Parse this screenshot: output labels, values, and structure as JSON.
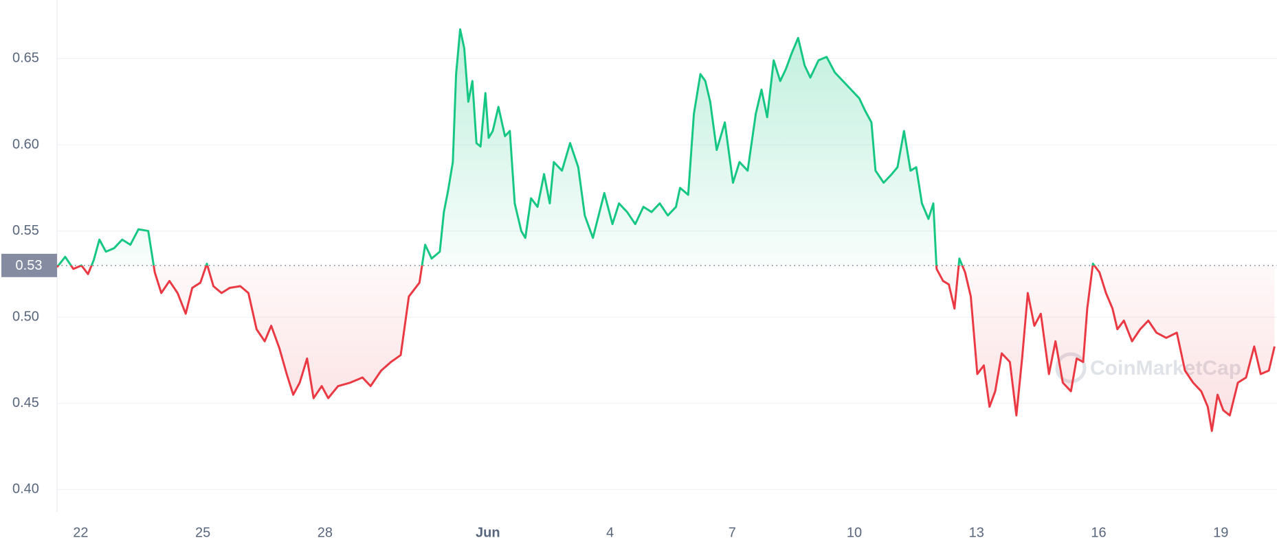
{
  "chart_data": {
    "type": "line",
    "baseline": 0.53,
    "watermark": "CoinMarketCap",
    "up_color": "#16c784",
    "down_color": "#ea3943",
    "grid": true,
    "xlim": [
      21.42,
      51.38
    ],
    "ylim": [
      0.387,
      0.684
    ],
    "xticks": [
      22,
      25,
      28,
      {
        "value": 32,
        "label": "Jun"
      },
      {
        "value": 35,
        "label": "4"
      },
      {
        "value": 38,
        "label": "7"
      },
      {
        "value": 41,
        "label": "10"
      },
      {
        "value": 44,
        "label": "13"
      },
      {
        "value": 47,
        "label": "16"
      },
      {
        "value": 50,
        "label": "19"
      }
    ],
    "yticks": [
      {
        "value": 0.4,
        "label": "0.40"
      },
      0.45,
      {
        "value": 0.5,
        "label": "0.50"
      },
      0.55,
      {
        "value": 0.6,
        "label": "0.60"
      },
      0.65
    ],
    "x": [
      21.42,
      21.62,
      21.82,
      22.02,
      22.18,
      22.32,
      22.46,
      22.62,
      22.82,
      23.02,
      23.22,
      23.42,
      23.66,
      23.82,
      23.98,
      24.18,
      24.38,
      24.58,
      24.74,
      24.94,
      25.1,
      25.26,
      25.46,
      25.66,
      25.92,
      26.12,
      26.32,
      26.52,
      26.68,
      26.88,
      27.06,
      27.22,
      27.38,
      27.56,
      27.72,
      27.92,
      28.08,
      28.32,
      28.62,
      28.92,
      29.12,
      29.38,
      29.62,
      29.86,
      30.06,
      30.32,
      30.46,
      30.62,
      30.82,
      30.92,
      31.02,
      31.14,
      31.22,
      31.32,
      31.42,
      31.52,
      31.62,
      31.72,
      31.82,
      31.94,
      32.02,
      32.12,
      32.26,
      32.42,
      32.54,
      32.66,
      32.82,
      32.92,
      33.06,
      33.22,
      33.38,
      33.52,
      33.62,
      33.82,
      34.02,
      34.22,
      34.38,
      34.58,
      34.72,
      34.86,
      35.06,
      35.22,
      35.42,
      35.62,
      35.82,
      36.02,
      36.22,
      36.42,
      36.62,
      36.72,
      36.92,
      37.06,
      37.22,
      37.34,
      37.46,
      37.62,
      37.82,
      38.02,
      38.18,
      38.38,
      38.58,
      38.72,
      38.86,
      39.02,
      39.18,
      39.32,
      39.46,
      39.62,
      39.78,
      39.92,
      40.12,
      40.32,
      40.52,
      40.72,
      40.92,
      41.12,
      41.26,
      41.42,
      41.52,
      41.72,
      41.92,
      42.06,
      42.22,
      42.38,
      42.52,
      42.66,
      42.82,
      42.94,
      43.02,
      43.18,
      43.32,
      43.46,
      43.58,
      43.72,
      43.86,
      44.02,
      44.18,
      44.32,
      44.46,
      44.62,
      44.82,
      44.98,
      45.12,
      45.26,
      45.42,
      45.58,
      45.78,
      45.94,
      46.12,
      46.32,
      46.46,
      46.62,
      46.72,
      46.86,
      47.02,
      47.18,
      47.34,
      47.46,
      47.62,
      47.82,
      48.02,
      48.22,
      48.42,
      48.66,
      48.92,
      49.12,
      49.32,
      49.52,
      49.68,
      49.78,
      49.92,
      50.06,
      50.22,
      50.42,
      50.62,
      50.82,
      50.98,
      51.18,
      51.32
    ],
    "values": [
      0.529,
      0.535,
      0.528,
      0.53,
      0.525,
      0.533,
      0.545,
      0.538,
      0.54,
      0.545,
      0.542,
      0.551,
      0.55,
      0.526,
      0.514,
      0.521,
      0.514,
      0.502,
      0.517,
      0.52,
      0.531,
      0.518,
      0.514,
      0.517,
      0.518,
      0.514,
      0.493,
      0.486,
      0.495,
      0.482,
      0.467,
      0.455,
      0.462,
      0.476,
      0.453,
      0.46,
      0.453,
      0.46,
      0.462,
      0.465,
      0.46,
      0.469,
      0.474,
      0.478,
      0.512,
      0.52,
      0.542,
      0.534,
      0.538,
      0.561,
      0.573,
      0.59,
      0.641,
      0.667,
      0.656,
      0.625,
      0.637,
      0.601,
      0.599,
      0.63,
      0.604,
      0.608,
      0.622,
      0.605,
      0.608,
      0.566,
      0.55,
      0.546,
      0.569,
      0.564,
      0.583,
      0.566,
      0.59,
      0.585,
      0.601,
      0.587,
      0.559,
      0.546,
      0.559,
      0.572,
      0.554,
      0.566,
      0.561,
      0.554,
      0.564,
      0.561,
      0.566,
      0.559,
      0.564,
      0.575,
      0.571,
      0.618,
      0.641,
      0.637,
      0.625,
      0.597,
      0.613,
      0.578,
      0.59,
      0.585,
      0.618,
      0.632,
      0.616,
      0.649,
      0.637,
      0.644,
      0.653,
      0.662,
      0.646,
      0.639,
      0.649,
      0.651,
      0.642,
      0.637,
      0.632,
      0.627,
      0.62,
      0.613,
      0.585,
      0.578,
      0.583,
      0.587,
      0.608,
      0.585,
      0.587,
      0.566,
      0.557,
      0.566,
      0.528,
      0.521,
      0.519,
      0.505,
      0.534,
      0.526,
      0.512,
      0.467,
      0.472,
      0.448,
      0.457,
      0.479,
      0.474,
      0.443,
      0.476,
      0.514,
      0.495,
      0.502,
      0.467,
      0.486,
      0.462,
      0.457,
      0.476,
      0.474,
      0.505,
      0.531,
      0.526,
      0.514,
      0.505,
      0.493,
      0.498,
      0.486,
      0.493,
      0.498,
      0.491,
      0.488,
      0.491,
      0.469,
      0.462,
      0.457,
      0.448,
      0.434,
      0.455,
      0.446,
      0.443,
      0.462,
      0.465,
      0.483,
      0.467,
      0.469,
      0.483
    ]
  }
}
